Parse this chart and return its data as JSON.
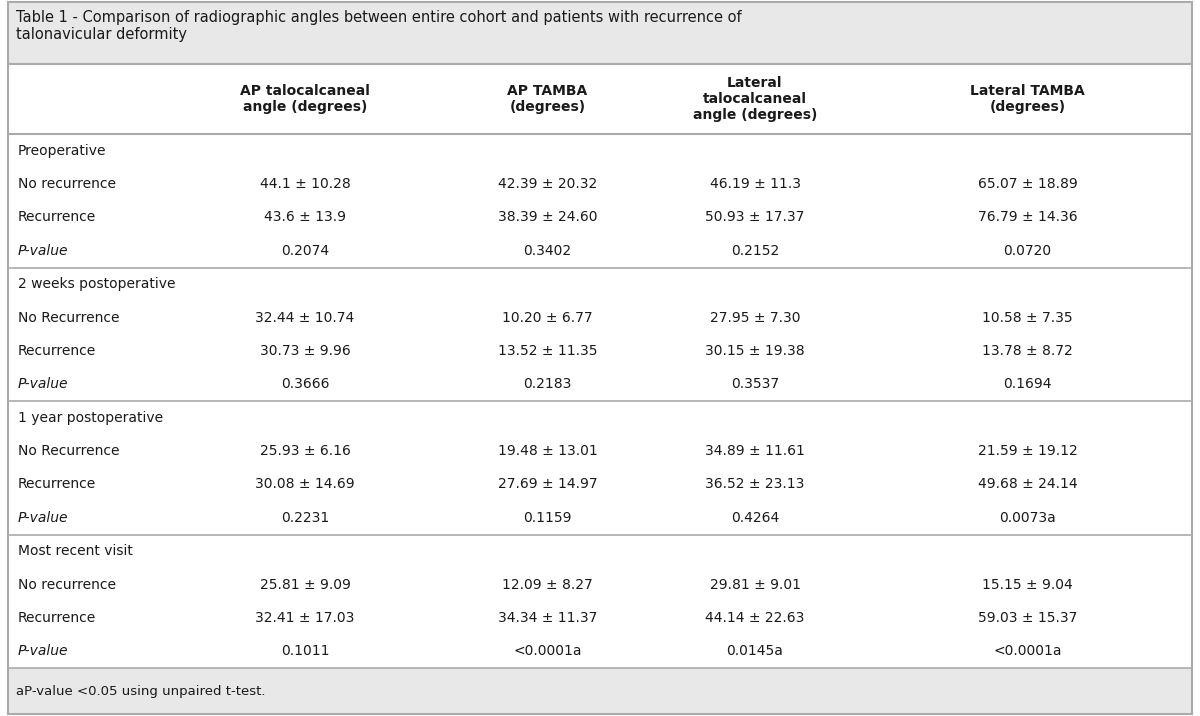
{
  "title": "Table 1 - Comparison of radiographic angles between entire cohort and patients with recurrence of\ntalonavicular deformity",
  "title_bg": "#e8e8e8",
  "footnote_bg": "#e8e8e8",
  "table_bg": "#ffffff",
  "border_color": "#aaaaaa",
  "footnote": "aP-value <0.05 using unpaired t-test.",
  "col_headers": [
    "",
    "AP talocalcaneal\nangle (degrees)",
    "AP TAMBA\n(degrees)",
    "Lateral\ntalocalcaneal\nangle (degrees)",
    "Lateral TAMBA\n(degrees)"
  ],
  "sections": [
    {
      "section_label": "Preoperative",
      "rows": [
        [
          "No recurrence",
          "44.1 ± 10.28",
          "42.39 ± 20.32",
          "46.19 ± 11.3",
          "65.07 ± 18.89"
        ],
        [
          "Recurrence",
          "43.6 ± 13.9",
          "38.39 ± 24.60",
          "50.93 ± 17.37",
          "76.79 ± 14.36"
        ],
        [
          "P-value",
          "0.2074",
          "0.3402",
          "0.2152",
          "0.0720"
        ]
      ]
    },
    {
      "section_label": "2 weeks postoperative",
      "rows": [
        [
          "No Recurrence",
          "32.44 ± 10.74",
          "10.20 ± 6.77",
          "27.95 ± 7.30",
          "10.58 ± 7.35"
        ],
        [
          "Recurrence",
          "30.73 ± 9.96",
          "13.52 ± 11.35",
          "30.15 ± 19.38",
          "13.78 ± 8.72"
        ],
        [
          "P-value",
          "0.3666",
          "0.2183",
          "0.3537",
          "0.1694"
        ]
      ]
    },
    {
      "section_label": "1 year postoperative",
      "rows": [
        [
          "No Recurrence",
          "25.93 ± 6.16",
          "19.48 ± 13.01",
          "34.89 ± 11.61",
          "21.59 ± 19.12"
        ],
        [
          "Recurrence",
          "30.08 ± 14.69",
          "27.69 ± 14.97",
          "36.52 ± 23.13",
          "49.68 ± 24.14"
        ],
        [
          "P-value",
          "0.2231",
          "0.1159",
          "0.4264",
          "0.0073a"
        ]
      ]
    },
    {
      "section_label": "Most recent visit",
      "rows": [
        [
          "No recurrence",
          "25.81 ± 9.09",
          "12.09 ± 8.27",
          "29.81 ± 9.01",
          "15.15 ± 9.04"
        ],
        [
          "Recurrence",
          "32.41 ± 17.03",
          "34.34 ± 11.37",
          "44.14 ± 22.63",
          "59.03 ± 15.37"
        ],
        [
          "P-value",
          "0.1011",
          "<0.0001a",
          "0.0145a",
          "<0.0001a"
        ]
      ]
    }
  ],
  "font_size_title": 10.5,
  "font_size_header": 10,
  "font_size_body": 10,
  "font_size_footnote": 9.5,
  "text_color": "#1a1a1a"
}
